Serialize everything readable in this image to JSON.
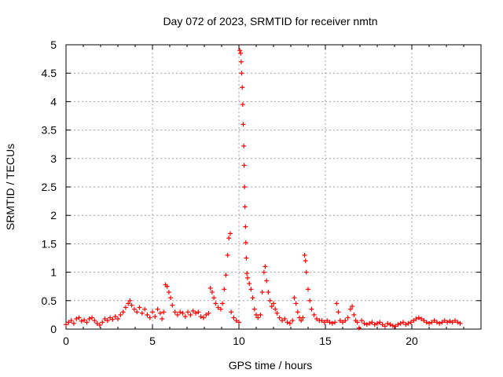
{
  "chart_data": {
    "type": "scatter",
    "title": "Day 072 of 2023, SRMTID for receiver nmtn",
    "xlabel": "GPS time / hours",
    "ylabel": "SRMTID / TECUs",
    "xlim": [
      0,
      24
    ],
    "ylim": [
      0,
      5
    ],
    "xticks": [
      0,
      5,
      10,
      15,
      20
    ],
    "xtick_labels": [
      "0",
      "5",
      "10",
      "15",
      "20"
    ],
    "yticks": [
      0,
      0.5,
      1,
      1.5,
      2,
      2.5,
      3,
      3.5,
      4,
      4.5,
      5
    ],
    "ytick_labels": [
      "0",
      "0.5",
      "1",
      "1.5",
      "2",
      "2.5",
      "3",
      "3.5",
      "4",
      "4.5",
      "5"
    ],
    "grid": true,
    "marker": "+",
    "series": [
      {
        "name": "SRMTID",
        "color": "#ff0000",
        "points": [
          [
            0.0,
            0.08
          ],
          [
            0.15,
            0.12
          ],
          [
            0.3,
            0.15
          ],
          [
            0.45,
            0.1
          ],
          [
            0.6,
            0.18
          ],
          [
            0.75,
            0.2
          ],
          [
            0.9,
            0.14
          ],
          [
            1.05,
            0.16
          ],
          [
            1.2,
            0.12
          ],
          [
            1.35,
            0.18
          ],
          [
            1.5,
            0.2
          ],
          [
            1.65,
            0.15
          ],
          [
            1.8,
            0.1
          ],
          [
            1.95,
            0.07
          ],
          [
            2.1,
            0.12
          ],
          [
            2.25,
            0.18
          ],
          [
            2.4,
            0.15
          ],
          [
            2.55,
            0.2
          ],
          [
            2.7,
            0.17
          ],
          [
            2.85,
            0.22
          ],
          [
            3.0,
            0.18
          ],
          [
            3.15,
            0.25
          ],
          [
            3.3,
            0.3
          ],
          [
            3.45,
            0.38
          ],
          [
            3.6,
            0.45
          ],
          [
            3.7,
            0.5
          ],
          [
            3.8,
            0.42
          ],
          [
            3.95,
            0.35
          ],
          [
            4.1,
            0.3
          ],
          [
            4.25,
            0.38
          ],
          [
            4.4,
            0.28
          ],
          [
            4.55,
            0.35
          ],
          [
            4.7,
            0.25
          ],
          [
            4.85,
            0.2
          ],
          [
            5.0,
            0.3
          ],
          [
            5.15,
            0.22
          ],
          [
            5.3,
            0.35
          ],
          [
            5.45,
            0.28
          ],
          [
            5.55,
            0.18
          ],
          [
            5.65,
            0.3
          ],
          [
            5.75,
            0.78
          ],
          [
            5.85,
            0.75
          ],
          [
            5.95,
            0.65
          ],
          [
            6.05,
            0.55
          ],
          [
            6.15,
            0.42
          ],
          [
            6.3,
            0.3
          ],
          [
            6.45,
            0.25
          ],
          [
            6.6,
            0.3
          ],
          [
            6.75,
            0.28
          ],
          [
            6.9,
            0.22
          ],
          [
            7.05,
            0.3
          ],
          [
            7.2,
            0.25
          ],
          [
            7.35,
            0.32
          ],
          [
            7.5,
            0.28
          ],
          [
            7.65,
            0.3
          ],
          [
            7.8,
            0.22
          ],
          [
            7.95,
            0.2
          ],
          [
            8.1,
            0.25
          ],
          [
            8.25,
            0.28
          ],
          [
            8.35,
            0.72
          ],
          [
            8.45,
            0.65
          ],
          [
            8.55,
            0.55
          ],
          [
            8.65,
            0.45
          ],
          [
            8.8,
            0.38
          ],
          [
            8.95,
            0.35
          ],
          [
            9.05,
            0.45
          ],
          [
            9.15,
            0.7
          ],
          [
            9.25,
            0.95
          ],
          [
            9.35,
            1.3
          ],
          [
            9.42,
            1.6
          ],
          [
            9.5,
            1.68
          ],
          [
            9.55,
            0.3
          ],
          [
            9.7,
            0.2
          ],
          [
            9.85,
            0.15
          ],
          [
            10.0,
            0.12
          ],
          [
            10.05,
            4.9
          ],
          [
            10.1,
            4.85
          ],
          [
            10.13,
            4.7
          ],
          [
            10.16,
            4.5
          ],
          [
            10.19,
            4.25
          ],
          [
            10.22,
            3.95
          ],
          [
            10.25,
            3.6
          ],
          [
            10.28,
            3.22
          ],
          [
            10.3,
            2.88
          ],
          [
            10.32,
            2.5
          ],
          [
            10.35,
            2.15
          ],
          [
            10.38,
            1.8
          ],
          [
            10.4,
            1.52
          ],
          [
            10.43,
            1.25
          ],
          [
            10.46,
            0.98
          ],
          [
            10.5,
            0.9
          ],
          [
            10.6,
            0.8
          ],
          [
            10.7,
            0.7
          ],
          [
            10.8,
            0.55
          ],
          [
            10.9,
            0.35
          ],
          [
            11.0,
            0.25
          ],
          [
            11.1,
            0.2
          ],
          [
            11.25,
            0.25
          ],
          [
            11.35,
            0.65
          ],
          [
            11.45,
            1.0
          ],
          [
            11.52,
            1.1
          ],
          [
            11.6,
            0.85
          ],
          [
            11.7,
            0.65
          ],
          [
            11.8,
            0.5
          ],
          [
            11.9,
            0.4
          ],
          [
            12.0,
            0.45
          ],
          [
            12.1,
            0.35
          ],
          [
            12.2,
            0.28
          ],
          [
            12.35,
            0.2
          ],
          [
            12.5,
            0.15
          ],
          [
            12.65,
            0.18
          ],
          [
            12.8,
            0.12
          ],
          [
            12.95,
            0.1
          ],
          [
            13.1,
            0.15
          ],
          [
            13.2,
            0.55
          ],
          [
            13.3,
            0.45
          ],
          [
            13.4,
            0.3
          ],
          [
            13.5,
            0.2
          ],
          [
            13.6,
            0.15
          ],
          [
            13.7,
            0.2
          ],
          [
            13.8,
            1.3
          ],
          [
            13.85,
            1.2
          ],
          [
            13.9,
            1.0
          ],
          [
            14.0,
            0.7
          ],
          [
            14.1,
            0.5
          ],
          [
            14.2,
            0.35
          ],
          [
            14.35,
            0.25
          ],
          [
            14.5,
            0.18
          ],
          [
            14.65,
            0.15
          ],
          [
            14.8,
            0.15
          ],
          [
            14.95,
            0.12
          ],
          [
            15.1,
            0.15
          ],
          [
            15.25,
            0.12
          ],
          [
            15.4,
            0.1
          ],
          [
            15.55,
            0.12
          ],
          [
            15.65,
            0.45
          ],
          [
            15.75,
            0.3
          ],
          [
            15.85,
            0.15
          ],
          [
            16.0,
            0.12
          ],
          [
            16.15,
            0.15
          ],
          [
            16.3,
            0.2
          ],
          [
            16.45,
            0.35
          ],
          [
            16.55,
            0.4
          ],
          [
            16.65,
            0.25
          ],
          [
            16.75,
            0.15
          ],
          [
            16.85,
            0.12
          ],
          [
            16.95,
            0.02
          ],
          [
            17.1,
            0.15
          ],
          [
            17.25,
            0.1
          ],
          [
            17.4,
            0.08
          ],
          [
            17.55,
            0.1
          ],
          [
            17.7,
            0.12
          ],
          [
            17.85,
            0.08
          ],
          [
            18.0,
            0.1
          ],
          [
            18.15,
            0.12
          ],
          [
            18.3,
            0.08
          ],
          [
            18.45,
            0.05
          ],
          [
            18.6,
            0.1
          ],
          [
            18.75,
            0.08
          ],
          [
            18.9,
            0.06
          ],
          [
            19.05,
            0.05
          ],
          [
            19.2,
            0.08
          ],
          [
            19.35,
            0.1
          ],
          [
            19.5,
            0.12
          ],
          [
            19.65,
            0.08
          ],
          [
            19.8,
            0.1
          ],
          [
            19.95,
            0.12
          ],
          [
            20.1,
            0.15
          ],
          [
            20.25,
            0.18
          ],
          [
            20.4,
            0.2
          ],
          [
            20.55,
            0.18
          ],
          [
            20.7,
            0.15
          ],
          [
            20.85,
            0.12
          ],
          [
            21.0,
            0.1
          ],
          [
            21.15,
            0.12
          ],
          [
            21.3,
            0.15
          ],
          [
            21.45,
            0.12
          ],
          [
            21.6,
            0.1
          ],
          [
            21.75,
            0.12
          ],
          [
            21.9,
            0.15
          ],
          [
            22.05,
            0.12
          ],
          [
            22.2,
            0.14
          ],
          [
            22.35,
            0.12
          ],
          [
            22.5,
            0.15
          ],
          [
            22.65,
            0.12
          ],
          [
            22.8,
            0.1
          ]
        ]
      }
    ]
  }
}
